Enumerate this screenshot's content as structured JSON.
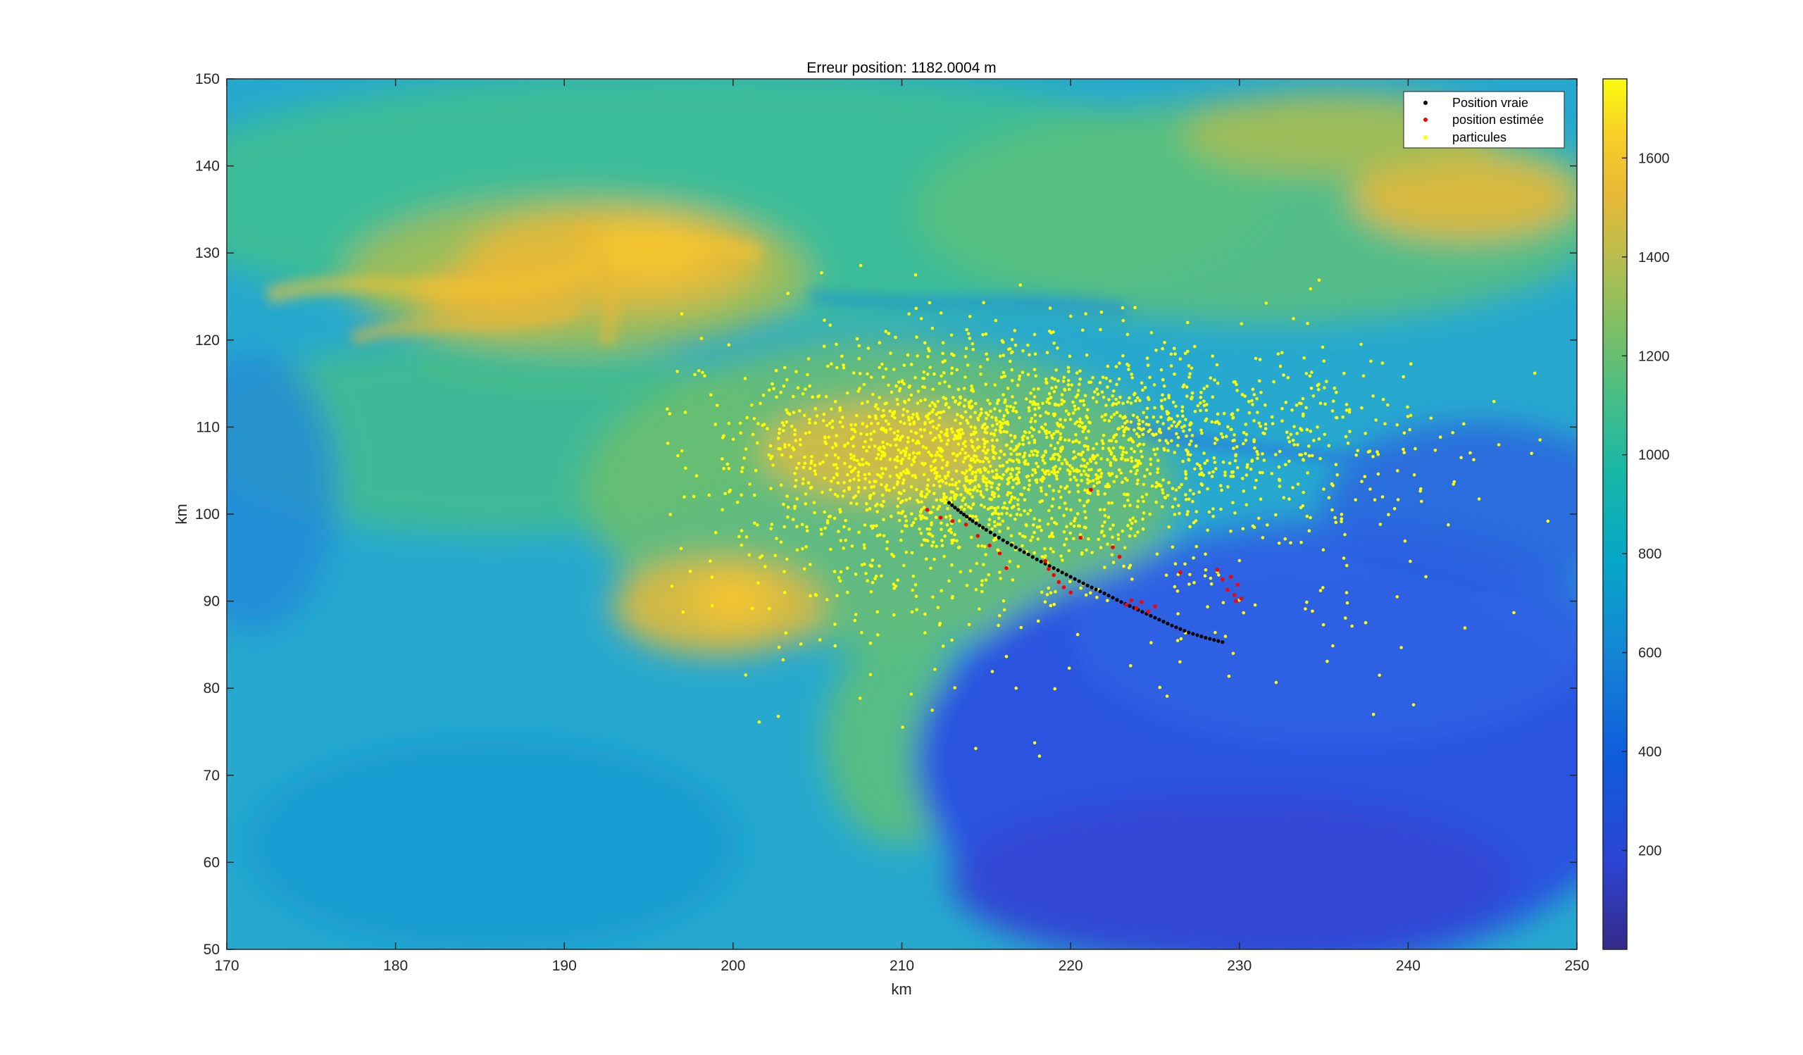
{
  "chart_data": {
    "type": "scatter",
    "title": "Erreur position: 1182.0004 m",
    "xlabel": "km",
    "ylabel": "km",
    "xlim": [
      170,
      250
    ],
    "ylim": [
      50,
      150
    ],
    "xticks": [
      170,
      180,
      190,
      200,
      210,
      220,
      230,
      240,
      250
    ],
    "yticks": [
      50,
      60,
      70,
      80,
      90,
      100,
      110,
      120,
      130,
      140,
      150
    ],
    "background": "terrain elevation heatmap (parula colormap)",
    "colorbar": {
      "range": [
        0,
        1760
      ],
      "ticks": [
        200,
        400,
        600,
        800,
        1000,
        1200,
        1400,
        1600
      ],
      "colormap": "parula"
    },
    "legend": {
      "position": "top-right",
      "entries": [
        {
          "label": "Position vraie",
          "color": "#000000"
        },
        {
          "label": "position estimée",
          "color": "#ff0000"
        },
        {
          "label": "particules",
          "color": "#ffff00"
        }
      ]
    },
    "series": [
      {
        "name": "Position vraie",
        "color": "#000000",
        "x": [
          212.8,
          213.5,
          214.2,
          215.0,
          216.0,
          217.0,
          218.0,
          219.0,
          220.0,
          221.0,
          222.0,
          223.0,
          224.0,
          225.0,
          226.0,
          227.0,
          228.0,
          229.0
        ],
        "y": [
          101.3,
          100.2,
          99.2,
          98.2,
          97.0,
          95.9,
          94.8,
          93.8,
          92.8,
          91.8,
          90.9,
          89.9,
          89.0,
          88.1,
          87.2,
          86.4,
          85.8,
          85.3
        ]
      },
      {
        "name": "position estimée",
        "color": "#ff0000",
        "x": [
          211.5,
          212.3,
          213.0,
          213.8,
          214.5,
          215.2,
          215.8,
          216.2,
          218.5,
          218.7,
          219.0,
          219.3,
          219.6,
          220.0,
          220.6,
          221.2,
          222.5,
          222.9,
          223.3,
          223.6,
          223.9,
          224.2,
          224.6,
          225.0,
          226.5,
          228.7,
          229.0,
          229.3,
          229.7,
          229.9,
          230.1,
          229.8,
          229.5
        ],
        "y": [
          100.5,
          99.6,
          99.2,
          98.8,
          97.5,
          96.4,
          95.5,
          93.8,
          94.6,
          93.7,
          93.0,
          92.2,
          91.6,
          91.0,
          97.3,
          102.8,
          96.2,
          95.1,
          89.6,
          90.1,
          89.2,
          89.9,
          88.8,
          89.4,
          93.3,
          93.6,
          92.5,
          91.3,
          90.7,
          91.9,
          90.3,
          90.0,
          92.8
        ]
      },
      {
        "name": "particules",
        "color": "#ffff00",
        "distribution": "cloud",
        "x_extent": [
          196,
          249
        ],
        "y_extent": [
          72,
          129
        ],
        "count": 2600
      }
    ]
  }
}
